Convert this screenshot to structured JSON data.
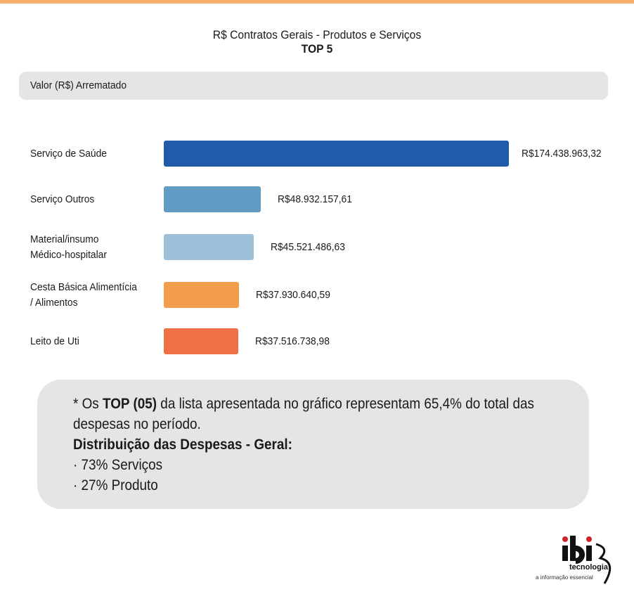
{
  "title": "R$ Contratos Gerais - Produtos e Serviços",
  "subtitle": "TOP 5",
  "measure_label": "Valor (R$) Arrematado",
  "chart_data": {
    "type": "bar",
    "orientation": "horizontal",
    "title": "R$ Contratos Gerais - Produtos e Serviços",
    "subtitle": "TOP 5",
    "xlabel": "Valor (R$) Arrematado",
    "ylabel": "",
    "grid": false,
    "categories": [
      "Serviço de Saúde",
      "Serviço Outros",
      "Material/insumo\nMédico-hospitalar",
      "Cesta Básica Alimentícia\n / Alimentos",
      "Leito de Uti"
    ],
    "values": [
      174438963.32,
      48932157.61,
      45521486.63,
      37930640.59,
      37516738.98
    ],
    "value_labels": [
      "R$174.438.963,32",
      "R$48.932.157,61",
      "R$45.521.486,63",
      "R$37.930.640,59",
      "R$37.516.738,98"
    ],
    "colors": [
      "#1f5ba8",
      "#5f9bc3",
      "#9ec0da",
      "#f39c4b",
      "#ef7045"
    ]
  },
  "note": {
    "line1_prefix": "* Os ",
    "line1_bold": "TOP (05)",
    "line1_suffix": " da lista apresentada no gráfico representam 65,4% do total das",
    "line2": "despesas no período.",
    "heading": "Distribuição das Despesas - Geral:",
    "items": [
      "· 73% Serviços",
      "· 27% Produto"
    ]
  },
  "logo": {
    "brand": "ibi",
    "name": "tecnologia",
    "tagline": "a informação essencial",
    "accent_color": "#d0202a"
  }
}
